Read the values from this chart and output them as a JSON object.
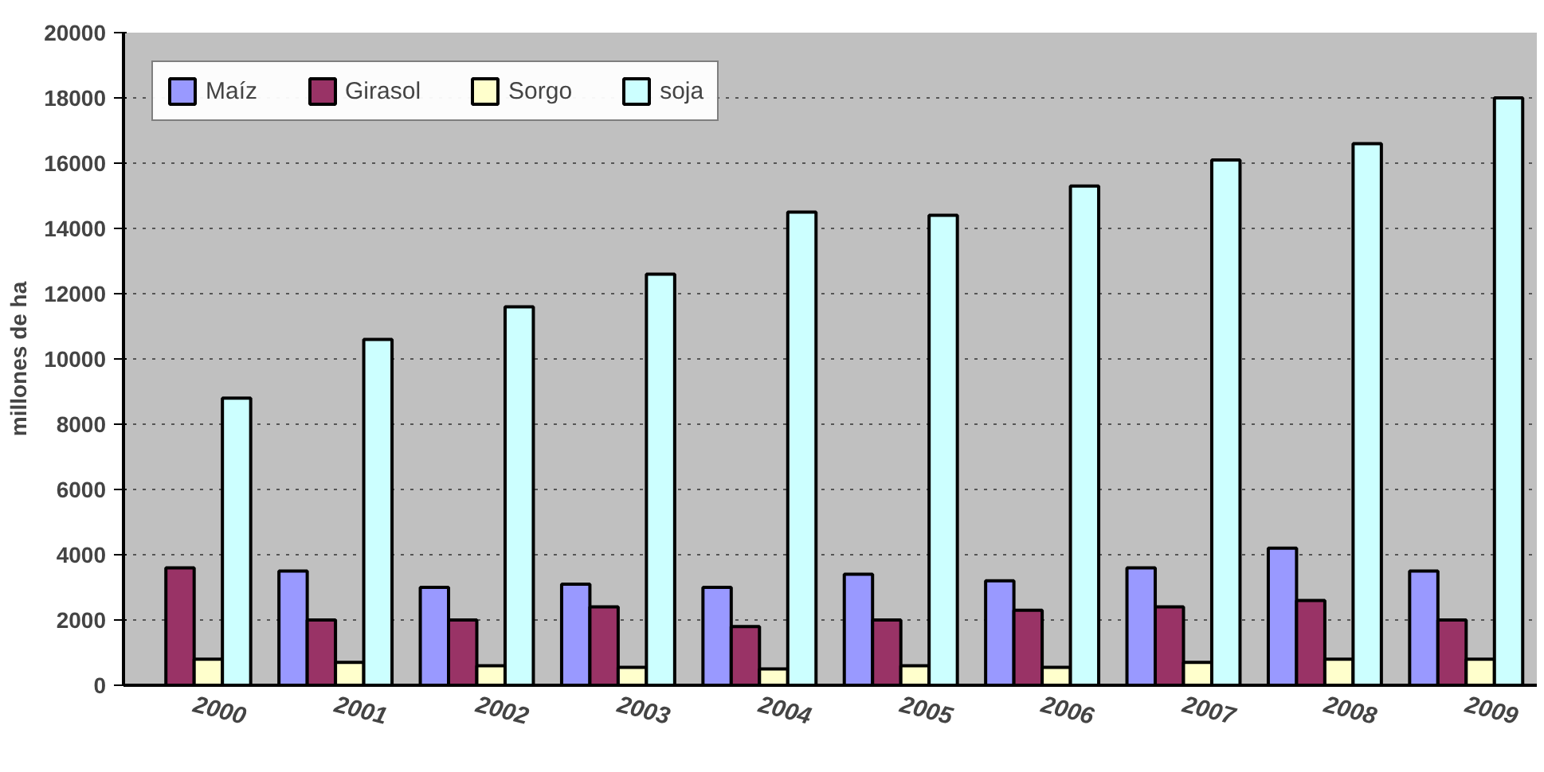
{
  "chart_data": {
    "type": "bar",
    "ylabel": "millones de ha",
    "categories": [
      "2000",
      "2001",
      "2002",
      "2003",
      "2004",
      "2005",
      "2006",
      "2007",
      "2008",
      "2009"
    ],
    "series": [
      {
        "name": "Maíz",
        "color": "#9999ff",
        "values": [
          null,
          3500,
          3000,
          3100,
          3000,
          3400,
          3200,
          3600,
          4200,
          3500
        ]
      },
      {
        "name": "Girasol",
        "color": "#993366",
        "values": [
          3600,
          2000,
          2000,
          2400,
          1800,
          2000,
          2300,
          2400,
          2600,
          2000
        ]
      },
      {
        "name": "Sorgo",
        "color": "#ffffcc",
        "values": [
          800,
          700,
          600,
          550,
          500,
          600,
          550,
          700,
          800,
          800
        ]
      },
      {
        "name": "soja",
        "color": "#ccffff",
        "values": [
          8800,
          10600,
          11600,
          12600,
          14500,
          14400,
          15300,
          16100,
          16600,
          18000
        ]
      }
    ],
    "ylim": [
      0,
      20000
    ],
    "yticks": [
      0,
      2000,
      4000,
      6000,
      8000,
      10000,
      12000,
      14000,
      16000,
      18000,
      20000
    ],
    "grid": "y",
    "legend": "top left"
  }
}
